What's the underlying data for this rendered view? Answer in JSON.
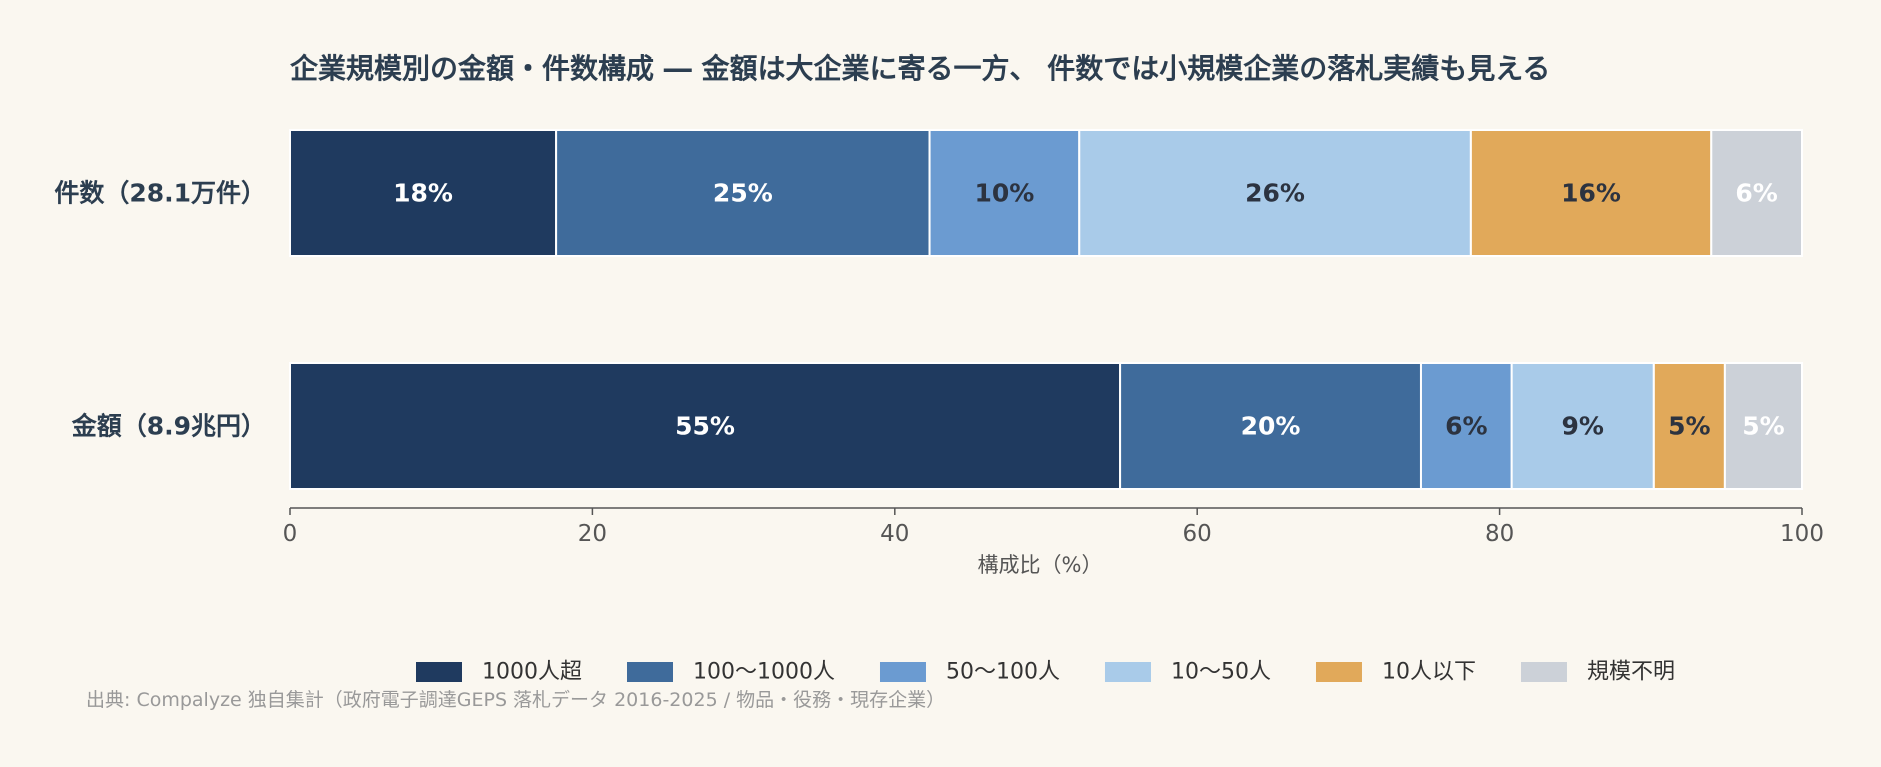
{
  "chart_data": {
    "type": "bar",
    "orientation": "horizontal",
    "stacked": true,
    "title": "企業規模別の金額・件数構成 ― 金額は大企業に寄る一方、 件数では小規模企業の落札実績も見える",
    "xlabel": "構成比（%）",
    "ylabel": "",
    "xlim": [
      0,
      100
    ],
    "xticks": [
      0,
      20,
      40,
      60,
      80,
      100
    ],
    "grid": false,
    "legend_position": "bottom",
    "categories": [
      "件数（28.1万件）",
      "金額（8.9兆円）"
    ],
    "series": [
      {
        "name": "1000人超",
        "color": "#1f3a5f",
        "values": [
          17.6,
          54.9
        ],
        "labels": [
          "18%",
          "55%"
        ],
        "label_color": "#ffffff"
      },
      {
        "name": "100〜1000人",
        "color": "#3f6b9b",
        "values": [
          24.7,
          19.9
        ],
        "labels": [
          "25%",
          "20%"
        ],
        "label_color": "#ffffff"
      },
      {
        "name": "50〜100人",
        "color": "#6b9bd1",
        "values": [
          9.9,
          6.0
        ],
        "labels": [
          "10%",
          "6%"
        ],
        "label_color": "#2c3340"
      },
      {
        "name": "10〜50人",
        "color": "#a9cbe9",
        "values": [
          25.9,
          9.4
        ],
        "labels": [
          "26%",
          "9%"
        ],
        "label_color": "#2c3340"
      },
      {
        "name": "10人以下",
        "color": "#e1a95a",
        "values": [
          15.9,
          4.7
        ],
        "labels": [
          "16%",
          "5%"
        ],
        "label_color": "#2c3340"
      },
      {
        "name": "規模不明",
        "color": "#ccd1d8",
        "values": [
          6.0,
          5.1
        ],
        "labels": [
          "6%",
          "5%"
        ],
        "label_color": "#ffffff"
      }
    ]
  },
  "source_note": "出典: Compalyze 独自集計（政府電子調達GEPS 落札データ 2016-2025 / 物品・役務・現存企業）"
}
